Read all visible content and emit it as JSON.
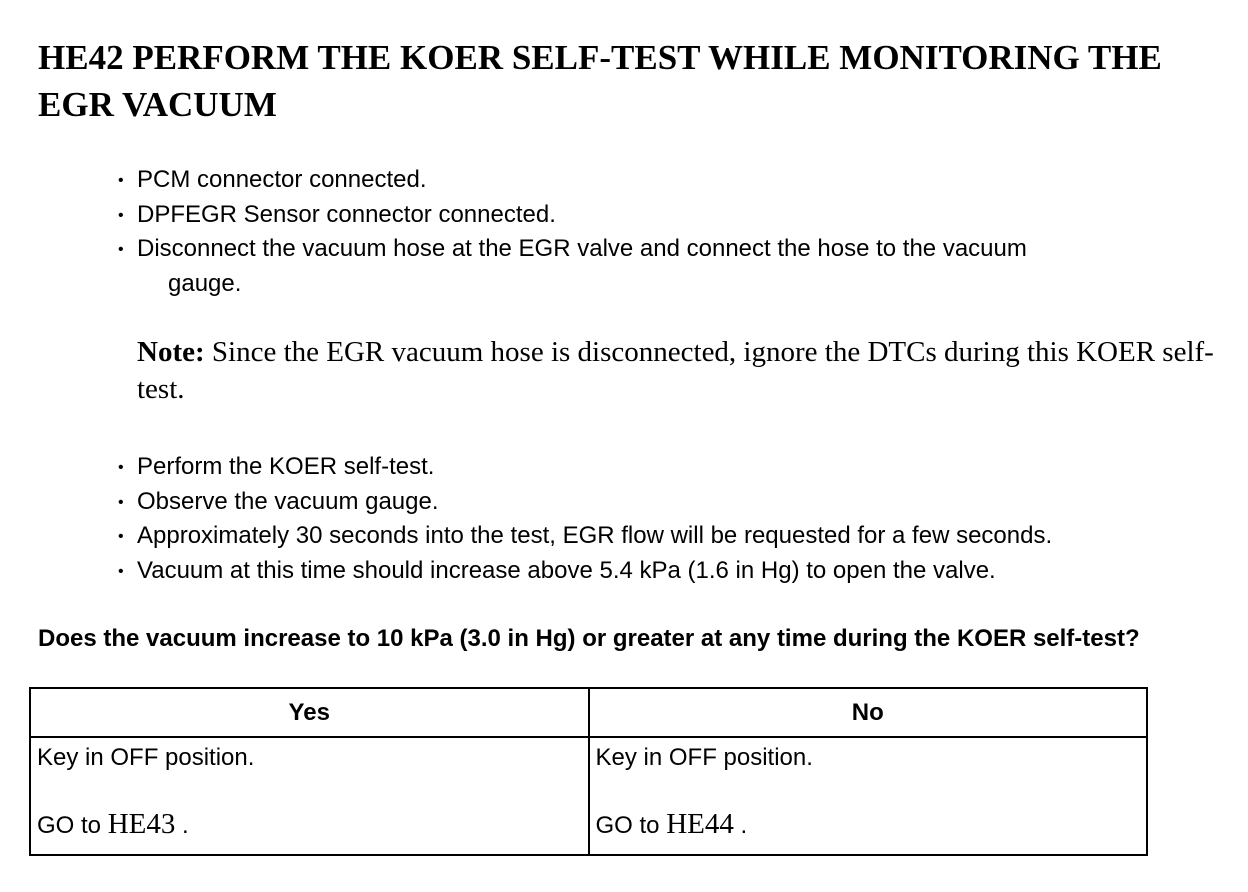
{
  "title": "HE42 PERFORM THE KOER SELF-TEST WHILE MONITORING THE EGR VACUUM",
  "bullets_before": [
    {
      "text": "PCM connector connected."
    },
    {
      "text": "DPFEGR Sensor connector connected."
    },
    {
      "text": "Disconnect the vacuum hose at the EGR valve and connect the hose to the vacuum",
      "continuation": "gauge."
    }
  ],
  "note": {
    "label": "Note:",
    "text": " Since the EGR vacuum hose is disconnected, ignore the DTCs during this KOER self-test."
  },
  "bullets_after": [
    {
      "text": "Perform the KOER self-test."
    },
    {
      "text": "Observe the vacuum gauge."
    },
    {
      "text": "Approximately 30 seconds into the test, EGR flow will be requested for a few seconds."
    },
    {
      "text": "Vacuum at this time should increase above 5.4 kPa (1.6 in Hg) to open the valve."
    }
  ],
  "bullet_glyph": "•",
  "question": "Does the vacuum increase to 10 kPa (3.0 in Hg) or greater at any time during the KOER self-test?",
  "table": {
    "headers": [
      "Yes",
      "No"
    ],
    "cells": [
      {
        "action": "Key in OFF position.",
        "go_prefix": "GO to ",
        "ref": "HE43",
        "suffix": " ."
      },
      {
        "action": "Key in OFF position.",
        "go_prefix": "GO to ",
        "ref": "HE44",
        "suffix": " ."
      }
    ]
  }
}
